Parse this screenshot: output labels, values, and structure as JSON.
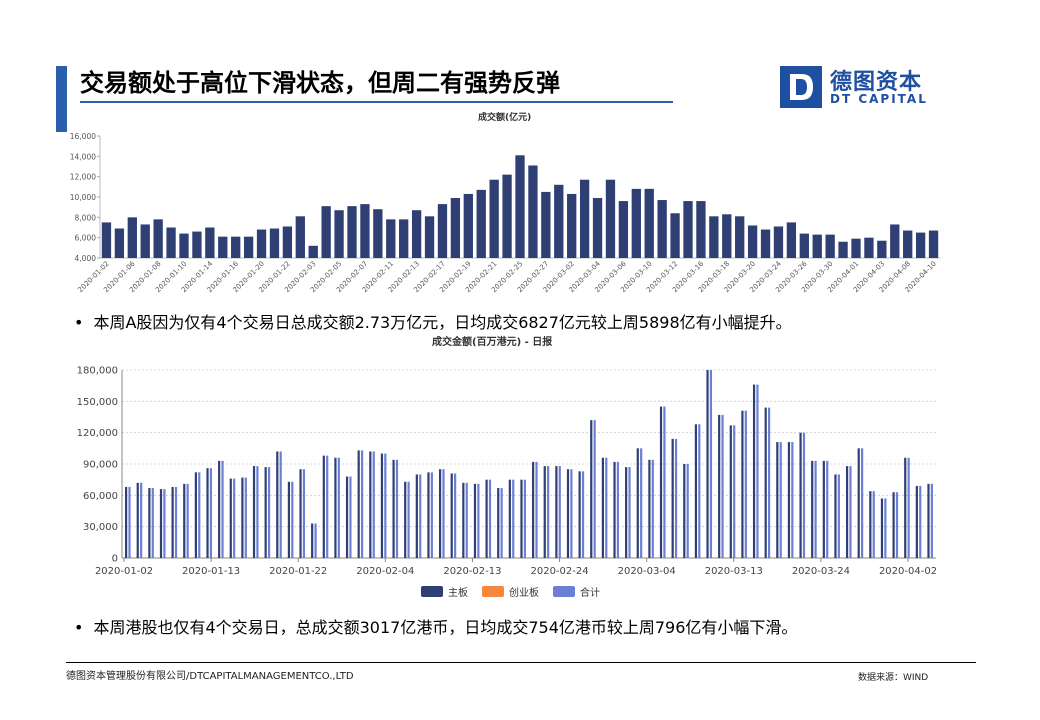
{
  "header": {
    "title": "交易额处于高位下滑状态，但周二有强势反弹",
    "accent_color": "#2a5fad"
  },
  "logo": {
    "mark": "D",
    "cn": "德图资本",
    "en": "DT CAPITAL",
    "color": "#1f4fa0"
  },
  "bullets": [
    "本周A股因为仅有4个交易日总成交额2.73万亿元，日均成交6827亿元较上周5898亿有小幅提升。",
    "本周港股也仅有4个交易日，总成交额3017亿港币，日均成交754亿港币较上周796亿有小幅下滑。"
  ],
  "bullet_char": "•",
  "footer": {
    "company": "德图资本管理股份有限公司/DTCAPITALMANAGEMENTCO.,LTD",
    "source": "数据来源：WIND"
  },
  "chart_data": [
    {
      "type": "bar",
      "title": "成交额(亿元)",
      "color": "#2f3f73",
      "ylim": [
        4000,
        16000
      ],
      "yticks": [
        4000,
        6000,
        8000,
        10000,
        12000,
        14000,
        16000
      ],
      "ytick_labels": [
        "4,000",
        "6,000",
        "8,000",
        "10,000",
        "12,000",
        "14,000",
        "16,000"
      ],
      "xtick_labels": [
        "2020-01-02",
        "2020-01-06",
        "2020-01-08",
        "2020-01-10",
        "2020-01-14",
        "2020-01-16",
        "2020-01-20",
        "2020-01-22",
        "2020-02-03",
        "2020-02-05",
        "2020-02-07",
        "2020-02-11",
        "2020-02-13",
        "2020-02-17",
        "2020-02-19",
        "2020-02-21",
        "2020-02-25",
        "2020-02-27",
        "2020-03-02",
        "2020-03-04",
        "2020-03-06",
        "2020-03-10",
        "2020-03-12",
        "2020-03-16",
        "2020-03-18",
        "2020-03-20",
        "2020-03-24",
        "2020-03-26",
        "2020-03-30",
        "2020-04-01",
        "2020-04-03",
        "2020-04-08",
        "2020-04-10"
      ],
      "values": [
        7500,
        6900,
        8000,
        7300,
        7800,
        7000,
        6400,
        6600,
        7000,
        6100,
        6100,
        6100,
        6800,
        6900,
        7100,
        8100,
        5200,
        9100,
        8700,
        9100,
        9300,
        8800,
        7800,
        7800,
        8700,
        8100,
        9300,
        9900,
        10300,
        10700,
        11700,
        12200,
        14100,
        13100,
        10500,
        11200,
        10300,
        11700,
        9900,
        11700,
        9600,
        10800,
        10800,
        9700,
        8400,
        9600,
        9600,
        8100,
        8300,
        8100,
        7200,
        6800,
        7100,
        7500,
        6400,
        6300,
        6300,
        5600,
        5900,
        6000,
        5700,
        7300,
        6700,
        6500,
        6700
      ]
    },
    {
      "type": "bar",
      "title": "成交金额(百万港元) - 日报",
      "ylim": [
        0,
        180000
      ],
      "yticks": [
        0,
        30000,
        60000,
        90000,
        120000,
        150000,
        180000
      ],
      "ytick_labels": [
        "0",
        "30,000",
        "60,000",
        "90,000",
        "120,000",
        "150,000",
        "180,000"
      ],
      "xtick_labels": [
        "2020-01-02",
        "2020-01-13",
        "2020-01-22",
        "2020-02-04",
        "2020-02-13",
        "2020-02-24",
        "2020-03-04",
        "2020-03-13",
        "2020-03-24",
        "2020-04-02"
      ],
      "legend": [
        {
          "name": "主板",
          "color": "#2f3f73"
        },
        {
          "name": "创业板",
          "color": "#f5883a"
        },
        {
          "name": "合计",
          "color": "#6b7fd6"
        }
      ],
      "series": [
        {
          "name": "主板",
          "color": "#2f3f73",
          "values": [
            68000,
            72000,
            67000,
            66000,
            68000,
            71000,
            82000,
            86000,
            93000,
            76000,
            77000,
            88000,
            87000,
            102000,
            73000,
            85000,
            33000,
            98000,
            96000,
            78000,
            103000,
            102000,
            100000,
            94000,
            73000,
            80000,
            82000,
            85000,
            81000,
            72000,
            71000,
            75000,
            67000,
            75000,
            75000,
            92000,
            88000,
            88000,
            85000,
            83000,
            132000,
            96000,
            92000,
            87000,
            105000,
            94000,
            145000,
            114000,
            90000,
            128000,
            180000,
            137000,
            127000,
            141000,
            166000,
            144000,
            111000,
            111000,
            120000,
            93000,
            93000,
            80000,
            88000,
            105000,
            64000,
            57000,
            63000,
            96000,
            69000,
            71000
          ]
        },
        {
          "name": "合计",
          "color": "#6b7fd6",
          "values": [
            68000,
            72000,
            67000,
            66000,
            68000,
            71000,
            82000,
            86000,
            93000,
            76000,
            77000,
            88000,
            87000,
            102000,
            73000,
            85000,
            33000,
            98000,
            96000,
            78000,
            103000,
            102000,
            100000,
            94000,
            73000,
            80000,
            82000,
            85000,
            81000,
            72000,
            71000,
            75000,
            67000,
            75000,
            75000,
            92000,
            88000,
            88000,
            85000,
            83000,
            132000,
            96000,
            92000,
            87000,
            105000,
            94000,
            145000,
            114000,
            90000,
            128000,
            180000,
            137000,
            127000,
            141000,
            166000,
            144000,
            111000,
            111000,
            120000,
            93000,
            93000,
            80000,
            88000,
            105000,
            64000,
            57000,
            63000,
            96000,
            69000,
            71000
          ]
        }
      ]
    }
  ]
}
